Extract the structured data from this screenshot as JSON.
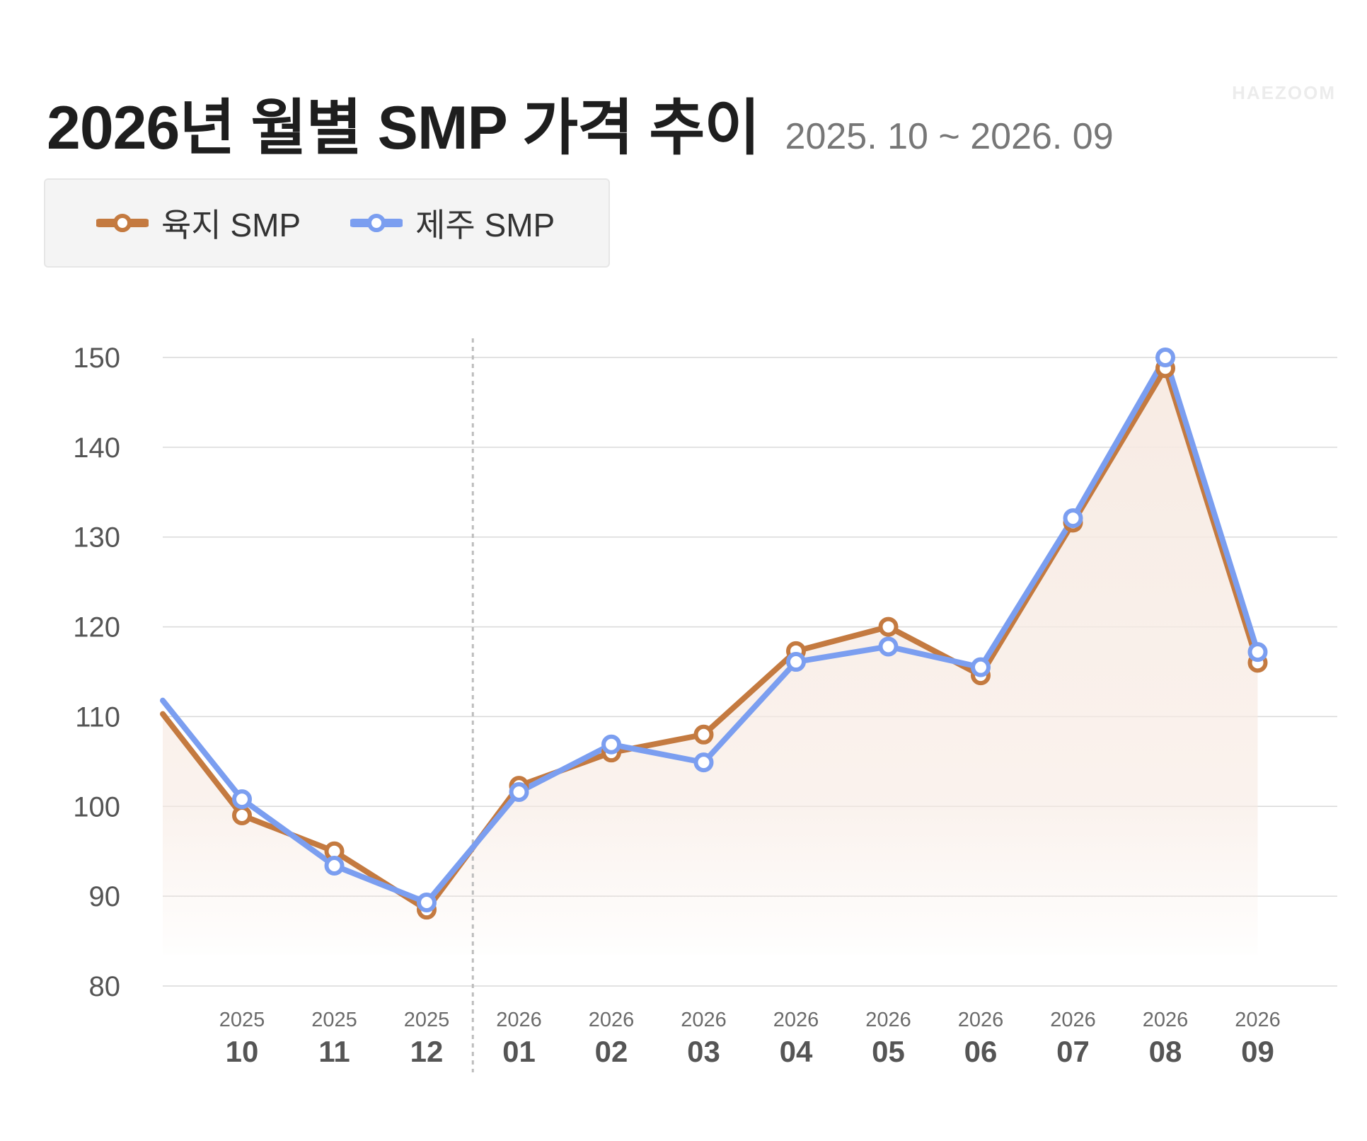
{
  "header": {
    "title": "2026년 월별 SMP 가격 추이",
    "subtitle": "2025. 10 ~ 2026. 09",
    "watermark": "HAEZOOM"
  },
  "colors": {
    "mainland": "#C47A40",
    "jeju": "#7B9EF0",
    "area_fill": "#F7EAE2",
    "grid": "#d9d9d9",
    "divider": "#bdbdbd"
  },
  "chart_data": {
    "type": "line",
    "title": "2026년 월별 SMP 가격 추이",
    "subtitle": "2025. 10 ~ 2026. 09",
    "xlabel": "",
    "ylabel": "",
    "ylim": [
      80,
      150
    ],
    "yticks": [
      80,
      90,
      100,
      110,
      120,
      130,
      140,
      150
    ],
    "grid": true,
    "legend_position": "top-left",
    "categories": [
      {
        "year": "2025",
        "month": "10"
      },
      {
        "year": "2025",
        "month": "11"
      },
      {
        "year": "2025",
        "month": "12"
      },
      {
        "year": "2026",
        "month": "01"
      },
      {
        "year": "2026",
        "month": "02"
      },
      {
        "year": "2026",
        "month": "03"
      },
      {
        "year": "2026",
        "month": "04"
      },
      {
        "year": "2026",
        "month": "05"
      },
      {
        "year": "2026",
        "month": "06"
      },
      {
        "year": "2026",
        "month": "07"
      },
      {
        "year": "2026",
        "month": "08"
      },
      {
        "year": "2026",
        "month": "09"
      }
    ],
    "prior_values": {
      "mainland": 110.3,
      "jeju": 111.8
    },
    "series": [
      {
        "key": "mainland",
        "name": "육지 SMP",
        "values": [
          99.0,
          95.0,
          88.5,
          102.3,
          106.0,
          108.0,
          117.3,
          120.0,
          114.6,
          131.6,
          148.8,
          116.0
        ],
        "area_fill": true
      },
      {
        "key": "jeju",
        "name": "제주 SMP",
        "values": [
          100.8,
          93.4,
          89.3,
          101.6,
          106.9,
          104.9,
          116.1,
          117.8,
          115.5,
          132.1,
          150.0,
          117.2
        ],
        "area_fill": false
      }
    ],
    "divider_between": [
      "12",
      "01"
    ]
  }
}
